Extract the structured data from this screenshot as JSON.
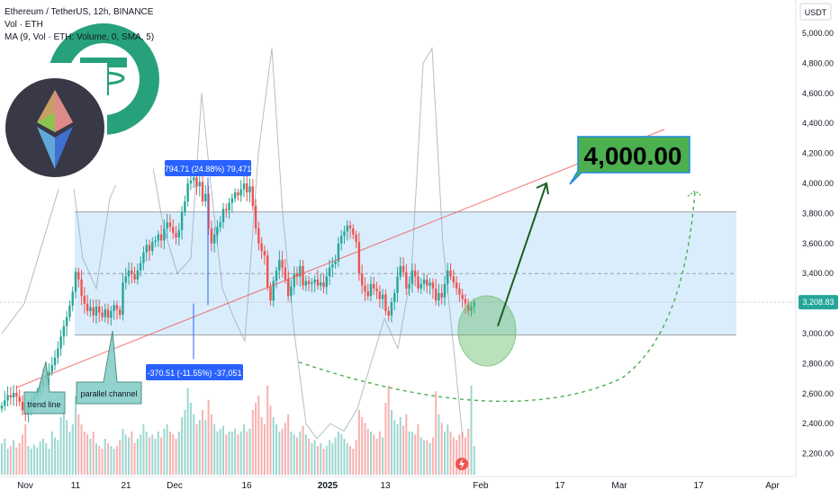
{
  "header": {
    "title": "Ethereum / TetherUS, 12h, BINANCE",
    "volume_label": "Vol · ETH",
    "ma_label": "MA (9, Vol · ETH: Volume, 0, SMA, 5)"
  },
  "price_axis": {
    "currency": "USDT",
    "ticks": [
      "5,000.00",
      "4,800.00",
      "4,600.00",
      "4,400.00",
      "4,200.00",
      "4,000.00",
      "3,800.00",
      "3,600.00",
      "3,400.00",
      "3,200.00",
      "3,000.00",
      "2,800.00",
      "2,600.00",
      "2,400.00",
      "2,200.00"
    ],
    "current_price": "3,208.83"
  },
  "time_axis": {
    "ticks": [
      "Nov",
      "11",
      "21",
      "Dec",
      "16",
      "2025",
      "13",
      "Feb",
      "17",
      "Mar",
      "17",
      "Apr"
    ]
  },
  "annotations": {
    "target": "4,000.00",
    "trend_line": "trend line",
    "parallel_channel": "parallel channel",
    "measure_up": "794.71 (24.88%) 79,471",
    "measure_down": "-370.51 (-11.55%) -37,051"
  },
  "logos": {
    "tether": "tether-logo",
    "ethereum": "ethereum-logo"
  },
  "colors": {
    "bull": "#26a69a",
    "bear": "#ef5350",
    "channel": "#bbdefb",
    "target_box": "#4caf50",
    "arrow": "#1b5e20",
    "measure": "#2962ff",
    "current_price": "#26a69a"
  },
  "chart_data": {
    "type": "candlestick",
    "symbol": "ETH/USDT",
    "interval": "12h",
    "exchange": "BINANCE",
    "ylim": [
      2100,
      5100
    ],
    "channel": {
      "lower": 2990,
      "upper": 3810,
      "mid": 3400
    },
    "current_price": 3208.83,
    "target": 4000,
    "trend_line": [
      {
        "x": "2024-11-01",
        "y": 2640
      },
      {
        "x": "2025-03-15",
        "y": 4360
      }
    ],
    "measure_up": {
      "from": 3190,
      "to": 4040,
      "label": "794.71 (24.88%) 79,471"
    },
    "measure_down": {
      "from": 3200,
      "to": 2830,
      "label": "-370.51 (-11.55%) -37,051"
    },
    "closes": [
      2520,
      2555,
      2590,
      2575,
      2605,
      2580,
      2545,
      2490,
      2460,
      2515,
      2560,
      2580,
      2610,
      2650,
      2700,
      2720,
      2745,
      2790,
      2840,
      2900,
      2980,
      3050,
      3110,
      3185,
      3280,
      3410,
      3360,
      3250,
      3200,
      3150,
      3175,
      3120,
      3180,
      3140,
      3110,
      3160,
      3105,
      3150,
      3190,
      3160,
      3125,
      3340,
      3380,
      3420,
      3395,
      3360,
      3420,
      3470,
      3540,
      3590,
      3550,
      3610,
      3620,
      3660,
      3620,
      3700,
      3740,
      3710,
      3670,
      3640,
      3690,
      3810,
      3880,
      4000,
      4020,
      4040,
      3980,
      4010,
      3880,
      3930,
      3700,
      3600,
      3660,
      3710,
      3740,
      3830,
      3820,
      3870,
      3900,
      3940,
      3920,
      3960,
      4000,
      3940,
      3980,
      3850,
      3700,
      3600,
      3550,
      3520,
      3310,
      3220,
      3350,
      3420,
      3490,
      3440,
      3360,
      3250,
      3310,
      3400,
      3380,
      3450,
      3320,
      3350,
      3330,
      3340,
      3360,
      3320,
      3340,
      3310,
      3380,
      3440,
      3460,
      3480,
      3600,
      3650,
      3680,
      3720,
      3700,
      3660,
      3610,
      3400,
      3320,
      3280,
      3250,
      3330,
      3300,
      3280,
      3230,
      3260,
      3150,
      3120,
      3210,
      3270,
      3380,
      3450,
      3410,
      3300,
      3330,
      3420,
      3380,
      3300,
      3330,
      3360,
      3320,
      3340,
      3300,
      3220,
      3270,
      3240,
      3330,
      3420,
      3380,
      3340,
      3300,
      3260,
      3230,
      3200,
      3150,
      3180,
      3208.83
    ],
    "volumes": [
      0.22,
      0.25,
      0.18,
      0.2,
      0.24,
      0.19,
      0.22,
      0.28,
      0.35,
      0.2,
      0.18,
      0.21,
      0.19,
      0.23,
      0.25,
      0.22,
      0.18,
      0.3,
      0.26,
      0.24,
      0.4,
      0.45,
      0.38,
      0.3,
      0.35,
      0.55,
      0.42,
      0.35,
      0.3,
      0.28,
      0.25,
      0.3,
      0.22,
      0.2,
      0.18,
      0.25,
      0.22,
      0.2,
      0.18,
      0.2,
      0.24,
      0.32,
      0.28,
      0.26,
      0.3,
      0.22,
      0.25,
      0.28,
      0.35,
      0.3,
      0.26,
      0.28,
      0.25,
      0.3,
      0.26,
      0.32,
      0.35,
      0.3,
      0.28,
      0.25,
      0.3,
      0.4,
      0.45,
      0.6,
      0.5,
      0.42,
      0.35,
      0.38,
      0.45,
      0.38,
      0.52,
      0.42,
      0.35,
      0.3,
      0.32,
      0.34,
      0.28,
      0.3,
      0.3,
      0.32,
      0.28,
      0.3,
      0.35,
      0.3,
      0.32,
      0.45,
      0.5,
      0.55,
      0.4,
      0.35,
      0.62,
      0.48,
      0.4,
      0.35,
      0.3,
      0.32,
      0.36,
      0.42,
      0.3,
      0.28,
      0.26,
      0.3,
      0.34,
      0.28,
      0.25,
      0.22,
      0.24,
      0.2,
      0.22,
      0.18,
      0.2,
      0.24,
      0.22,
      0.26,
      0.3,
      0.28,
      0.25,
      0.22,
      0.2,
      0.18,
      0.24,
      0.45,
      0.4,
      0.36,
      0.32,
      0.3,
      0.28,
      0.25,
      0.3,
      0.26,
      0.5,
      0.62,
      0.45,
      0.38,
      0.35,
      0.4,
      0.34,
      0.42,
      0.3,
      0.3,
      0.28,
      0.35,
      0.26,
      0.24,
      0.24,
      0.22,
      0.26,
      0.58,
      0.42,
      0.36,
      0.3,
      0.35,
      0.3,
      0.26,
      0.24,
      0.28,
      0.3,
      0.26,
      0.32,
      0.62,
      0.2
    ],
    "ma_line": [
      {
        "x": 0,
        "y": 3000
      },
      {
        "x": 25,
        "y": 3200
      },
      {
        "x": 45,
        "y": 3600
      },
      {
        "x": 60,
        "y": 3900
      },
      {
        "x": 75,
        "y": 4200
      },
      {
        "x": 90,
        "y": 3500
      },
      {
        "x": 105,
        "y": 3300
      },
      {
        "x": 120,
        "y": 3900
      },
      {
        "x": 135,
        "y": 4100
      },
      {
        "x": 150,
        "y": 4700
      },
      {
        "x": 165,
        "y": 4200
      },
      {
        "x": 180,
        "y": 3700
      },
      {
        "x": 195,
        "y": 3400
      },
      {
        "x": 210,
        "y": 3500
      },
      {
        "x": 222,
        "y": 4600
      },
      {
        "x": 232,
        "y": 4000
      },
      {
        "x": 245,
        "y": 3300
      },
      {
        "x": 258,
        "y": 3100
      },
      {
        "x": 270,
        "y": 2950
      },
      {
        "x": 285,
        "y": 4200
      },
      {
        "x": 300,
        "y": 4900
      },
      {
        "x": 312,
        "y": 3800
      },
      {
        "x": 325,
        "y": 3000
      },
      {
        "x": 338,
        "y": 2400
      },
      {
        "x": 350,
        "y": 2300
      },
      {
        "x": 365,
        "y": 2400
      },
      {
        "x": 380,
        "y": 2350
      },
      {
        "x": 395,
        "y": 2500
      },
      {
        "x": 410,
        "y": 2800
      },
      {
        "x": 425,
        "y": 3100
      },
      {
        "x": 440,
        "y": 2900
      },
      {
        "x": 455,
        "y": 3400
      },
      {
        "x": 468,
        "y": 4800
      },
      {
        "x": 478,
        "y": 4900
      },
      {
        "x": 490,
        "y": 3600
      },
      {
        "x": 502,
        "y": 2900
      },
      {
        "x": 512,
        "y": 2300
      }
    ],
    "target_path": {
      "type": "arrow",
      "from": {
        "x": "end",
        "y": 3050
      },
      "to": {
        "x": "+20 bars",
        "y": 4000
      }
    },
    "projection_path": {
      "type": "dashed-curve",
      "end_y": 3950
    },
    "grid": false
  }
}
